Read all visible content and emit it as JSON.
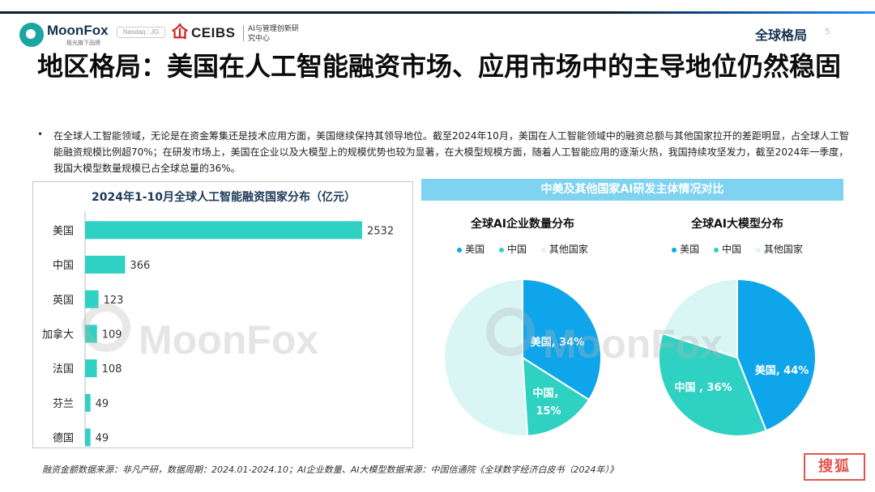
{
  "header": {
    "brand": "MoonFox",
    "brand_sub": "极光旗下品牌",
    "nasdaq": "Nasdaq : JG",
    "ceibs": "CEIBS",
    "ceibs_sub": "AI与管理创新研究中心",
    "section": "全球格局",
    "page_number": "5"
  },
  "title": "地区格局：美国在人工智能融资市场、应用市场中的主导地位仍然稳固",
  "bullet": "在全球人工智能领域，无论是在资金筹集还是技术应用方面，美国继续保持其领导地位。截至2024年10月，美国在人工智能领域中的融资总额与其他国家拉开的差距明显，占全球人工智能融资规模比例超70%；在研发市场上，美国在企业以及大模型上的规模优势也较为显著，在大模型规模方面，随着人工智能应用的逐渐火热，我国持续攻坚发力，截至2024年一季度，我国大模型数量规模已占全球总量的36%。",
  "colors": {
    "bar": "#2fd1c3",
    "us": "#0ea5ea",
    "china": "#2fd1c3",
    "other": "#d9f5f4",
    "banner": "#7fd3f0"
  },
  "right_banner": "中美及其他国家AI研发主体情况对比",
  "chart_data": [
    {
      "type": "bar",
      "orientation": "horizontal",
      "title": "2024年1-10月全球人工智能融资国家分布（亿元）",
      "categories": [
        "美国",
        "中国",
        "英国",
        "加拿大",
        "法国",
        "芬兰",
        "德国"
      ],
      "values": [
        2532,
        366,
        123,
        109,
        108,
        49,
        49
      ],
      "data_labels": [
        "2532",
        "366",
        "123",
        "109",
        "108",
        "49",
        "49"
      ]
    },
    {
      "type": "pie",
      "title": "全球AI企业数量分布",
      "legend": [
        "美国",
        "中国",
        "其他国家"
      ],
      "legend_position": "top",
      "slices": [
        {
          "name": "美国",
          "value": 34,
          "label": "美国, 34%"
        },
        {
          "name": "中国",
          "value": 15,
          "label": "中国，15%"
        },
        {
          "name": "其他国家",
          "value": 51,
          "label": ""
        }
      ]
    },
    {
      "type": "pie",
      "title": "全球AI大模型分布",
      "legend": [
        "美国",
        "中国",
        "其他国家"
      ],
      "legend_position": "top",
      "slices": [
        {
          "name": "美国",
          "value": 44,
          "label": "美国, 44%"
        },
        {
          "name": "中国",
          "value": 36,
          "label": "中国 , 36%"
        },
        {
          "name": "其他国家",
          "value": 20,
          "label": ""
        }
      ]
    }
  ],
  "watermark": "MoonFox",
  "footer": "融资金额数据来源：非凡产研，数据周期：2024.01-2024.10；AI企业数量、AI大模型数据来源：中国信通院《全球数字经济白皮书（2024年）》",
  "stamp": "搜狐"
}
